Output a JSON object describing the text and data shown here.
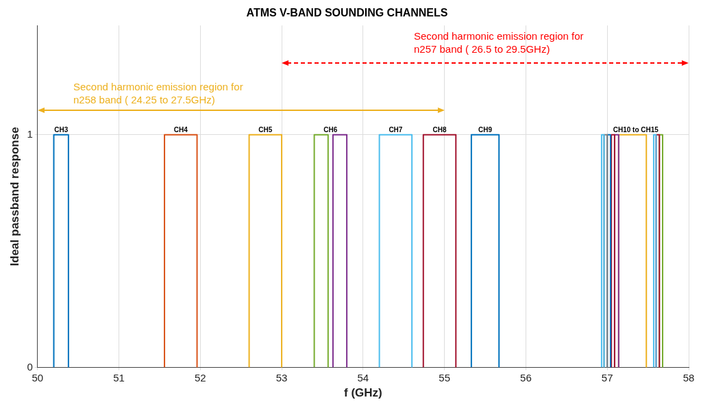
{
  "chart_data": {
    "type": "line",
    "title": "ATMS V-BAND SOUNDING CHANNELS",
    "xlabel": "f (GHz)",
    "ylabel": "Ideal passband response",
    "xlim": [
      50,
      58
    ],
    "xticks": [
      50,
      51,
      52,
      53,
      54,
      55,
      56,
      57,
      58
    ],
    "ylim": [
      0,
      1.47
    ],
    "yticks": [
      0,
      1
    ],
    "grid": true,
    "legend": false,
    "marker": "none",
    "series": [
      {
        "color": "#0072bd",
        "x": [
          50.2,
          50.2,
          50.38,
          50.38
        ],
        "values": [
          0,
          1,
          1,
          0
        ]
      },
      {
        "color": "#d95319",
        "x": [
          51.56,
          51.56,
          51.96,
          51.96
        ],
        "values": [
          0,
          1,
          1,
          0
        ]
      },
      {
        "color": "#edb120",
        "x": [
          52.6,
          52.6,
          53.0,
          53.0
        ],
        "values": [
          0,
          1,
          1,
          0
        ]
      },
      {
        "color": "#77ac30",
        "x": [
          53.4,
          53.4,
          53.57,
          53.57
        ],
        "values": [
          0,
          1,
          1,
          0
        ]
      },
      {
        "color": "#7e2f8e",
        "x": [
          53.63,
          53.63,
          53.8,
          53.8
        ],
        "values": [
          0,
          1,
          1,
          0
        ]
      },
      {
        "color": "#4dbeee",
        "x": [
          54.2,
          54.2,
          54.6,
          54.6
        ],
        "values": [
          0,
          1,
          1,
          0
        ]
      },
      {
        "color": "#a2142f",
        "x": [
          54.74,
          54.74,
          55.14,
          55.14
        ],
        "values": [
          0,
          1,
          1,
          0
        ]
      },
      {
        "color": "#0072bd",
        "x": [
          55.33,
          55.33,
          55.67,
          55.67
        ],
        "values": [
          0,
          1,
          1,
          0
        ]
      },
      {
        "color": "#4dbeee",
        "x": [
          56.93,
          56.93,
          56.96,
          56.96
        ],
        "values": [
          0,
          1,
          1,
          0
        ]
      },
      {
        "color": "#808080",
        "x": [
          56.96,
          56.96,
          57.0,
          57.0
        ],
        "values": [
          0,
          1,
          1,
          0
        ]
      },
      {
        "color": "#0072bd",
        "x": [
          57.0,
          57.0,
          57.04,
          57.04
        ],
        "values": [
          0,
          1,
          1,
          0
        ]
      },
      {
        "color": "#a2142f",
        "x": [
          57.05,
          57.05,
          57.09,
          57.09
        ],
        "values": [
          0,
          1,
          1,
          0
        ]
      },
      {
        "color": "#7e2f8e",
        "x": [
          57.09,
          57.09,
          57.14,
          57.14
        ],
        "values": [
          0,
          1,
          1,
          0
        ]
      },
      {
        "color": "#edb120",
        "x": [
          57.14,
          57.14,
          57.48,
          57.48
        ],
        "values": [
          0,
          1,
          1,
          0
        ]
      },
      {
        "color": "#4dbeee",
        "x": [
          57.57,
          57.57,
          57.6,
          57.6
        ],
        "values": [
          0,
          1,
          1,
          0
        ]
      },
      {
        "color": "#a2142f",
        "x": [
          57.6,
          57.6,
          57.64,
          57.64
        ],
        "values": [
          0,
          1,
          1,
          0
        ]
      },
      {
        "color": "#77ac30",
        "x": [
          57.64,
          57.64,
          57.68,
          57.68
        ],
        "values": [
          0,
          1,
          1,
          0
        ]
      }
    ],
    "annotations": [
      {
        "text": "CH3",
        "x": 50.29,
        "y": 1
      },
      {
        "text": "CH4",
        "x": 51.76,
        "y": 1
      },
      {
        "text": "CH5",
        "x": 52.8,
        "y": 1
      },
      {
        "text": "CH6",
        "x": 53.6,
        "y": 1
      },
      {
        "text": "CH7",
        "x": 54.4,
        "y": 1
      },
      {
        "text": "CH8",
        "x": 54.94,
        "y": 1
      },
      {
        "text": "CH9",
        "x": 55.5,
        "y": 1
      },
      {
        "text": "CH10 to CH15",
        "x": 57.35,
        "y": 1
      },
      "Second harmonic emission region for\nn258 band ( 24.25 to 27.5GHz)",
      "Second harmonic emission region for\nn257 band ( 26.5 to 29.5GHz)"
    ]
  }
}
